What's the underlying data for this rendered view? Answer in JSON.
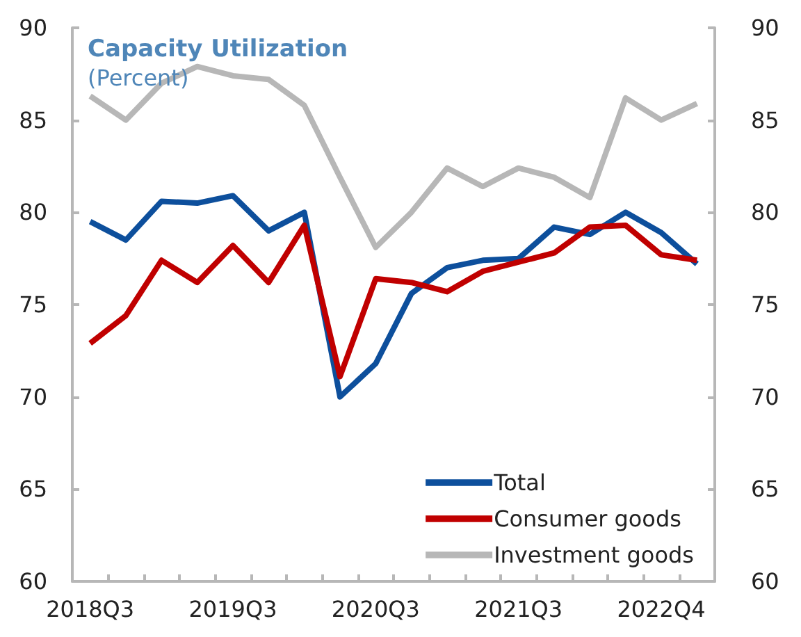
{
  "chart_data": {
    "type": "line",
    "title": "Capacity Utilization",
    "subtitle": "(Percent)",
    "categories": [
      "2018Q3",
      null,
      null,
      null,
      "2019Q3",
      null,
      null,
      null,
      "2020Q3",
      null,
      null,
      null,
      "2021Q3",
      null,
      null,
      null,
      "2022Q4",
      null
    ],
    "series": [
      {
        "name": "Total",
        "color": "#0d4f9c",
        "values": [
          79.5,
          78.5,
          80.6,
          80.5,
          80.9,
          79.0,
          80.0,
          70.0,
          71.8,
          75.6,
          77.0,
          77.4,
          77.5,
          79.2,
          78.8,
          80.0,
          78.9,
          77.2
        ]
      },
      {
        "name": "Consumer goods",
        "color": "#c00000",
        "values": [
          72.9,
          74.4,
          77.4,
          76.2,
          78.2,
          76.2,
          79.3,
          71.1,
          76.4,
          76.2,
          75.7,
          76.8,
          77.3,
          77.8,
          79.2,
          79.3,
          77.7,
          77.4
        ]
      },
      {
        "name": "Investment goods",
        "color": "#b7b7b7",
        "values": [
          86.3,
          85.0,
          87.0,
          87.9,
          87.4,
          87.2,
          85.8,
          81.9,
          78.1,
          80.0,
          82.4,
          81.4,
          82.4,
          81.9,
          80.8,
          86.2,
          85.0,
          85.9
        ]
      }
    ],
    "ylim": [
      60,
      90
    ],
    "yticks": [
      60,
      65,
      70,
      75,
      80,
      85,
      90
    ],
    "y2lim": [
      60,
      90
    ],
    "y2ticks": [
      60,
      65,
      70,
      75,
      80,
      85,
      90
    ],
    "grid": false,
    "legend": "bottom right",
    "marker": "none",
    "line_style": "solid"
  }
}
